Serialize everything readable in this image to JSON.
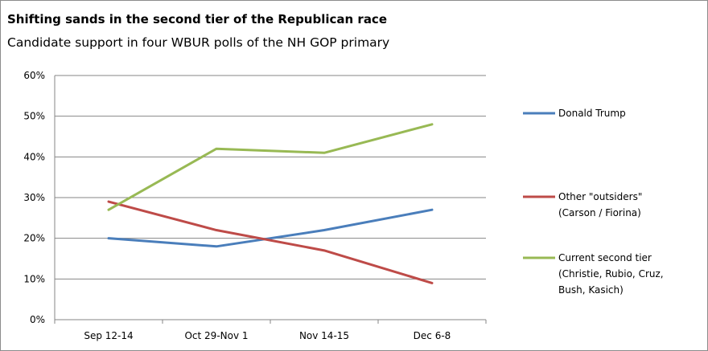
{
  "chart_data": {
    "type": "line",
    "title": "Shifting sands in the second tier of the Republican race",
    "subtitle": "Candidate support in four WBUR polls of the NH GOP primary",
    "xlabel": "",
    "ylabel": "",
    "categories": [
      "Sep 12-14",
      "Oct 29-Nov 1",
      "Nov 14-15",
      "Dec 6-8"
    ],
    "ylim": [
      0,
      60
    ],
    "y_ticks": [
      "0%",
      "10%",
      "20%",
      "30%",
      "40%",
      "50%",
      "60%"
    ],
    "grid": true,
    "legend_position": "right",
    "series": [
      {
        "name": "Donald Trump",
        "legend_lines": [
          "Donald Trump"
        ],
        "color": "#4a7ebb",
        "values": [
          20,
          18,
          22,
          27
        ]
      },
      {
        "name": "Other \"outsiders\" (Carson / Fiorina)",
        "legend_lines": [
          "Other \"outsiders\"",
          "(Carson / Fiorina)"
        ],
        "color": "#be4b48",
        "values": [
          29,
          22,
          17,
          9
        ]
      },
      {
        "name": "Current second tier (Christie, Rubio, Cruz, Bush, Kasich)",
        "legend_lines": [
          "Current second tier",
          "(Christie, Rubio, Cruz,",
          "Bush, Kasich)"
        ],
        "color": "#98b954",
        "values": [
          27,
          42,
          41,
          48
        ]
      }
    ]
  }
}
